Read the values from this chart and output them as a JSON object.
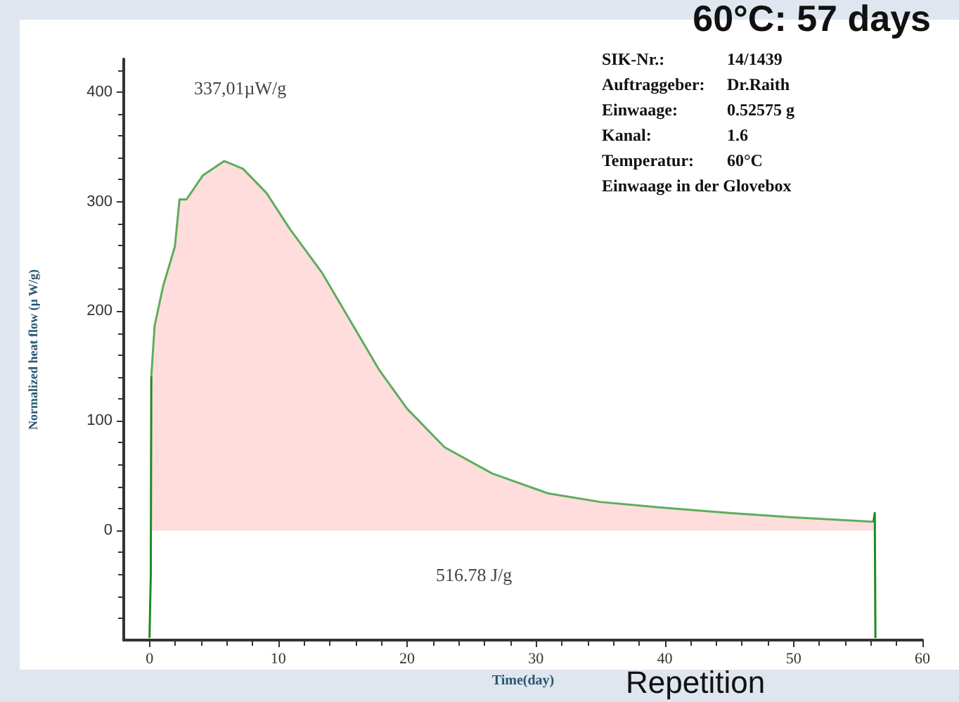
{
  "chart_data": {
    "type": "line",
    "title": "60°C: 57 days",
    "xlabel": "Time(day)",
    "ylabel": "Normalized heat flow (µ W/g)",
    "xlim": [
      -2,
      60
    ],
    "xticks": [
      0,
      10,
      20,
      30,
      40,
      50,
      60
    ],
    "ylim": [
      -100,
      430
    ],
    "yticks": [
      0,
      100,
      200,
      300,
      400
    ],
    "series": [
      {
        "color": "#1f8a1f",
        "x": [
          0,
          0.1,
          0.14
        ],
        "values": [
          -98,
          -40,
          141
        ]
      },
      {
        "type": "area",
        "color": "#ffdddd",
        "x": [
          0.14,
          0.4,
          1.06,
          1.97,
          2.33,
          2.87,
          4.15,
          5.79,
          7.25,
          9.07,
          10.9,
          13.4,
          15.6,
          17.8,
          20.0,
          22.9,
          26.6,
          30.9,
          35,
          39.7,
          45,
          50,
          56.2
        ],
        "values": [
          141,
          187,
          223,
          259,
          302,
          302,
          324,
          337,
          330,
          308,
          275,
          235,
          191,
          147,
          111,
          76,
          52,
          34,
          26,
          21,
          16,
          12,
          8
        ]
      },
      {
        "color": "#1f8a1f",
        "x": [
          56.2,
          56.3,
          56.35
        ],
        "values": [
          8,
          16,
          -98
        ]
      }
    ],
    "annotations": [
      "337,01µW/g",
      "516.78 J/g",
      "SIK-Nr.:\t14/1439",
      "Auftraggeber:\tDr.Raith",
      "Einwaage:\t0.52575 g",
      "Kanal:\t1.6",
      "Temperatur:\t60°C",
      "Einwaage in der Glovebox",
      "Repetition"
    ],
    "marker": "none",
    "grid": false
  }
}
